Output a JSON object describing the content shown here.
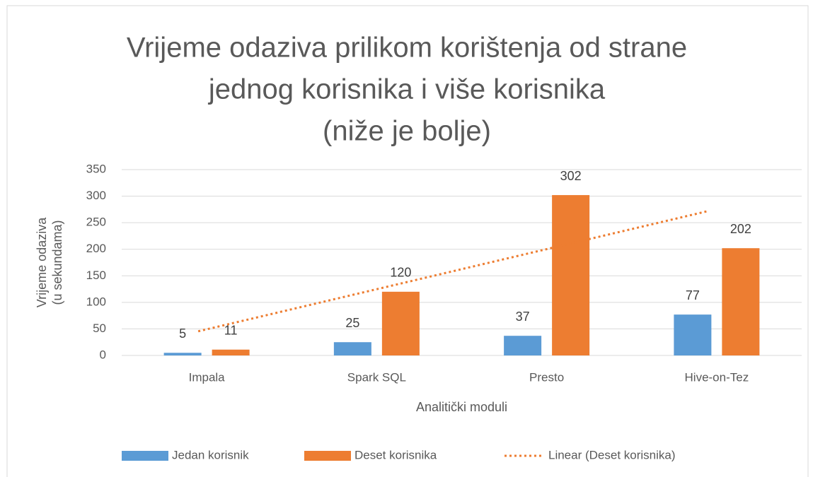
{
  "chart_data": {
    "type": "bar",
    "title": [
      "Vrijeme odaziva prilikom korištenja od strane",
      "jednog korisnika i više korisnika",
      "(niže je bolje)"
    ],
    "x_label": "Analitički moduli",
    "y_label": [
      "Vrijeme odaziva",
      "(u sekundama)"
    ],
    "categories": [
      "Impala",
      "Spark SQL",
      "Presto",
      "Hive-on-Tez"
    ],
    "series": [
      {
        "name": "Jedan korisnik",
        "color": "#5b9bd5",
        "values": [
          5,
          25,
          37,
          77
        ]
      },
      {
        "name": "Deset korisnika",
        "color": "#ed7d31",
        "values": [
          11,
          120,
          302,
          202
        ]
      },
      {
        "name": "Linear (Deset korisnika)",
        "color": "#ed7d31",
        "style": "dotted-trendline",
        "values": [
          45.5,
          121,
          196.5,
          272
        ]
      }
    ],
    "ylim": [
      0,
      350
    ],
    "yticks": [
      0,
      50,
      100,
      150,
      200,
      250,
      300,
      350
    ],
    "grid": true,
    "legend": "bottom"
  }
}
